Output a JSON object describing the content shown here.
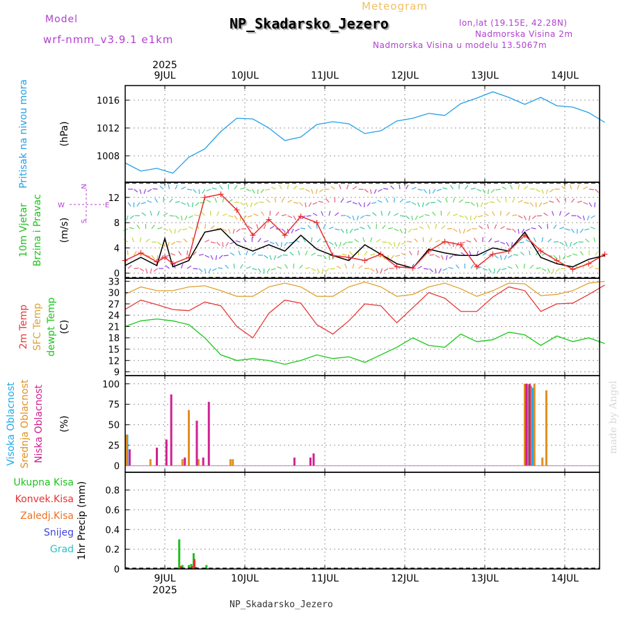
{
  "header": {
    "model_label": "Model",
    "model_version": "wrf-nmm_v3.9.1 e1km",
    "meteogram": "Meteogram",
    "station": "NP_Skadarsko_Jezero",
    "lonlat": "lon,lat (19.15E, 42.28N)",
    "altitude": "Nadmorska Visina 2m",
    "altitude_model": "Nadmorska Visina u modelu 13.5067m"
  },
  "footer": {
    "station": "NP_Skadarsko_Jezero"
  },
  "watermark": "made by Angel",
  "colors": {
    "pressure": "#22a0e8",
    "wind_speed": "#000000",
    "gust": "#e83030",
    "temp2m": "#e83838",
    "sfc_temp": "#e0a030",
    "dewpt": "#18c818",
    "visoka": "#20a8e8",
    "srednja": "#e09020",
    "niska": "#d02090",
    "ukupna": "#20c020",
    "konvek": "#e83030",
    "zaledj": "#f07020",
    "snijeg": "#4040e0",
    "grad": "#30c0c0",
    "title_purple": "#b040d0"
  },
  "chart_data": [
    {
      "type": "line",
      "title": "",
      "xlabel": "",
      "ylabel": "(hPa)",
      "top_axis_year": "2025",
      "bottom_axis_year": "2025",
      "x_tick_labels": [
        "9JUL",
        "10JUL",
        "11JUL",
        "12JUL",
        "13JUL",
        "14JUL"
      ],
      "y_tick_labels": [
        "1008",
        "1012",
        "1016"
      ],
      "ylim": [
        1004.2,
        1018.1
      ],
      "grid": true,
      "side_labels": [
        {
          "text": "Pritisak na nivou mora",
          "color": "#22a0e8"
        }
      ],
      "series": [
        {
          "name": "Pritisak na nivou mora",
          "color": "#22a0e8",
          "x": [
            0,
            0.2,
            0.4,
            0.6,
            0.8,
            1.0,
            1.2,
            1.4,
            1.6,
            1.8,
            2.0,
            2.2,
            2.4,
            2.6,
            2.8,
            3.0,
            3.2,
            3.4,
            3.6,
            3.8,
            4.0,
            4.2,
            4.4,
            4.6,
            4.8,
            5.0,
            5.2,
            5.4,
            5.6,
            5.8,
            6.0
          ],
          "values": [
            1007.0,
            1005.8,
            1006.2,
            1005.5,
            1007.8,
            1009.0,
            1011.5,
            1013.4,
            1013.3,
            1012.0,
            1010.2,
            1010.7,
            1012.5,
            1012.9,
            1012.6,
            1011.2,
            1011.6,
            1013.0,
            1013.4,
            1014.1,
            1013.8,
            1015.5,
            1016.3,
            1017.2,
            1016.4,
            1015.4,
            1016.4,
            1015.2,
            1015.0,
            1014.2,
            1012.8
          ]
        }
      ]
    },
    {
      "type": "line",
      "title": "",
      "xlabel": "",
      "ylabel": "(m/s)",
      "x_tick_labels": [
        "9JUL",
        "10JUL",
        "11JUL",
        "12JUL",
        "13JUL",
        "14JUL"
      ],
      "y_tick_labels": [
        "0",
        "4",
        "8",
        "12"
      ],
      "ylim": [
        -0.8,
        14.4
      ],
      "grid": true,
      "side_labels": [
        {
          "text": "10m Vjetar",
          "color": "#20c020"
        },
        {
          "text": "Brzina i Pravac",
          "color": "#20c020"
        }
      ],
      "compass": {
        "n": "N",
        "s": "S",
        "e": "E",
        "w": "W",
        "color": "#b040d0"
      },
      "series": [
        {
          "name": "wind speed",
          "color": "#000000",
          "x": [
            0,
            0.2,
            0.4,
            0.5,
            0.6,
            0.8,
            1.0,
            1.2,
            1.4,
            1.6,
            1.8,
            2.0,
            2.2,
            2.4,
            2.6,
            2.8,
            3.0,
            3.2,
            3.4,
            3.6,
            3.8,
            4.0,
            4.2,
            4.4,
            4.6,
            4.8,
            5.0,
            5.2,
            5.4,
            5.6,
            5.8,
            6.0
          ],
          "values": [
            1.2,
            2.5,
            1.2,
            5.5,
            1.0,
            2.0,
            6.5,
            7.0,
            4.5,
            3.5,
            4.5,
            3.5,
            6.0,
            3.8,
            2.8,
            2.0,
            4.5,
            3.0,
            1.5,
            0.8,
            3.8,
            3.2,
            2.8,
            2.8,
            4.0,
            3.5,
            6.5,
            2.5,
            1.5,
            1.0,
            2.2,
            2.8
          ]
        },
        {
          "name": "gust",
          "color": "#e83030",
          "x": [
            0,
            0.2,
            0.4,
            0.5,
            0.6,
            0.8,
            1.0,
            1.2,
            1.4,
            1.6,
            1.8,
            2.0,
            2.2,
            2.4,
            2.6,
            2.8,
            3.0,
            3.2,
            3.4,
            3.6,
            3.8,
            4.0,
            4.2,
            4.4,
            4.6,
            4.8,
            5.0,
            5.2,
            5.4,
            5.6,
            5.8,
            6.0
          ],
          "values": [
            2.0,
            3.2,
            1.8,
            2.5,
            1.5,
            2.5,
            12.0,
            12.5,
            10.0,
            6.0,
            8.5,
            6.0,
            9.0,
            8.0,
            2.8,
            2.5,
            2.0,
            3.0,
            1.0,
            0.8,
            3.5,
            5.0,
            4.5,
            1.0,
            3.0,
            3.5,
            6.0,
            3.5,
            2.0,
            0.6,
            1.5,
            3.0
          ]
        }
      ]
    },
    {
      "type": "line",
      "title": "",
      "xlabel": "",
      "ylabel": "(C)",
      "x_tick_labels": [
        "9JUL",
        "10JUL",
        "11JUL",
        "12JUL",
        "13JUL",
        "14JUL"
      ],
      "y_tick_labels": [
        "9",
        "12",
        "15",
        "18",
        "21",
        "24",
        "27",
        "30",
        "33"
      ],
      "ylim": [
        8.0,
        33.8
      ],
      "grid": true,
      "side_labels": [
        {
          "text": "2m Temp",
          "color": "#e83838"
        },
        {
          "text": "SFC Temp",
          "color": "#e0a030"
        },
        {
          "text": "dewpt Temp",
          "color": "#18c818"
        }
      ],
      "series": [
        {
          "name": "2m Temp",
          "color": "#e83838",
          "x": [
            0,
            0.2,
            0.4,
            0.6,
            0.8,
            1.0,
            1.2,
            1.4,
            1.6,
            1.8,
            2.0,
            2.2,
            2.4,
            2.6,
            2.8,
            3.0,
            3.2,
            3.4,
            3.6,
            3.8,
            4.0,
            4.2,
            4.4,
            4.6,
            4.8,
            5.0,
            5.2,
            5.4,
            5.6,
            5.8,
            6.0
          ],
          "values": [
            25.5,
            28.0,
            26.8,
            25.5,
            25.2,
            27.5,
            26.5,
            21.0,
            18.0,
            24.5,
            28.0,
            27.2,
            21.5,
            19.0,
            22.5,
            27.0,
            26.5,
            22.0,
            26.0,
            30.0,
            28.5,
            25.0,
            25.0,
            28.8,
            31.5,
            30.5,
            25.0,
            27.0,
            27.2,
            29.5,
            32.0
          ]
        },
        {
          "name": "SFC Temp",
          "color": "#e0a030",
          "x": [
            0,
            0.2,
            0.4,
            0.6,
            0.8,
            1.0,
            1.2,
            1.4,
            1.6,
            1.8,
            2.0,
            2.2,
            2.4,
            2.6,
            2.8,
            3.0,
            3.2,
            3.4,
            3.6,
            3.8,
            4.0,
            4.2,
            4.4,
            4.6,
            4.8,
            5.0,
            5.2,
            5.4,
            5.6,
            5.8,
            6.0
          ],
          "values": [
            29.5,
            31.5,
            30.5,
            30.5,
            31.5,
            31.8,
            30.5,
            29.0,
            29.0,
            31.5,
            32.5,
            31.5,
            29.0,
            29.0,
            31.5,
            32.8,
            31.5,
            29.0,
            29.5,
            31.5,
            32.5,
            31.0,
            29.0,
            30.5,
            32.5,
            32.3,
            29.2,
            29.5,
            30.5,
            32.5,
            33.0
          ]
        },
        {
          "name": "dewpt Temp",
          "color": "#18c818",
          "x": [
            0,
            0.2,
            0.4,
            0.6,
            0.8,
            1.0,
            1.2,
            1.4,
            1.6,
            1.8,
            2.0,
            2.2,
            2.4,
            2.6,
            2.8,
            3.0,
            3.2,
            3.4,
            3.6,
            3.8,
            4.0,
            4.2,
            4.4,
            4.6,
            4.8,
            5.0,
            5.2,
            5.4,
            5.6,
            5.8,
            6.0
          ],
          "values": [
            21.0,
            22.5,
            23.0,
            22.5,
            21.5,
            18.0,
            13.5,
            12.0,
            12.5,
            12.0,
            11.0,
            12.0,
            13.5,
            12.5,
            13.0,
            11.5,
            13.5,
            15.5,
            18.0,
            16.0,
            15.5,
            19.0,
            17.0,
            17.5,
            19.5,
            18.8,
            16.0,
            18.5,
            17.0,
            18.0,
            16.5
          ]
        }
      ]
    },
    {
      "type": "bar",
      "title": "",
      "xlabel": "",
      "ylabel": "(%)",
      "x_tick_labels": [
        "9JUL",
        "10JUL",
        "11JUL",
        "12JUL",
        "13JUL",
        "14JUL"
      ],
      "y_tick_labels": [
        "0",
        "25",
        "50",
        "75",
        "100"
      ],
      "ylim": [
        -8,
        110
      ],
      "grid": true,
      "side_labels": [
        {
          "text": "Visoka Oblacnost",
          "color": "#20a8e8"
        },
        {
          "text": "Srednja Oblacnost",
          "color": "#e09020"
        },
        {
          "text": "Niska Oblacnost",
          "color": "#d02090"
        }
      ],
      "series": [
        {
          "name": "Visoka Oblacnost",
          "color": "#20a8e8",
          "x": [
            0.03,
            5.05,
            5.08,
            5.1
          ],
          "values": [
            38,
            98,
            97,
            95
          ]
        },
        {
          "name": "Srednja Oblacnost",
          "color": "#e09020",
          "x": [
            0.02,
            0.32,
            0.72,
            0.8,
            0.92,
            1.32,
            1.35,
            5.0,
            5.03,
            5.07,
            5.12,
            5.22,
            5.27
          ],
          "values": [
            38,
            8,
            8,
            68,
            8,
            8,
            8,
            100,
            100,
            98,
            100,
            10,
            92
          ]
        },
        {
          "name": "Niska Oblacnost",
          "color": "#d02090",
          "x": [
            0.06,
            0.4,
            0.52,
            0.58,
            0.75,
            0.9,
            0.98,
            1.05,
            2.12,
            2.32,
            2.36,
            5.02,
            5.06
          ],
          "values": [
            20,
            22,
            32,
            87,
            10,
            55,
            10,
            78,
            10,
            10,
            15,
            100,
            100
          ]
        }
      ]
    },
    {
      "type": "bar",
      "title": "",
      "xlabel": "",
      "ylabel": "1hr Precip (mm)",
      "x_tick_labels": [
        "9JUL",
        "10JUL",
        "11JUL",
        "12JUL",
        "13JUL",
        "14JUL"
      ],
      "y_tick_labels": [
        "0",
        "0.2",
        "0.4",
        "0.6",
        "0.8"
      ],
      "ylim": [
        0,
        0.98
      ],
      "grid": true,
      "side_labels": [
        {
          "text": "Ukupna Kisa",
          "color": "#20c020"
        },
        {
          "text": "Konvek.Kisa",
          "color": "#e83030"
        },
        {
          "text": "Zaledj.Kisa",
          "color": "#f07020"
        },
        {
          "text": "Snijeg",
          "color": "#4040e0"
        },
        {
          "text": "Grad",
          "color": "#30c0c0"
        }
      ],
      "series": [
        {
          "name": "Ukupna Kisa",
          "color": "#20c020",
          "x": [
            0.02,
            0.68,
            0.72,
            0.8,
            0.83,
            0.86,
            0.89,
            1.02
          ],
          "values": [
            0.02,
            0.3,
            0.04,
            0.04,
            0.05,
            0.16,
            0.02,
            0.04
          ]
        },
        {
          "name": "Konvek.Kisa",
          "color": "#e83030",
          "x": [
            0.7,
            0.84,
            0.87
          ],
          "values": [
            0.03,
            0.03,
            0.1
          ]
        }
      ]
    }
  ]
}
